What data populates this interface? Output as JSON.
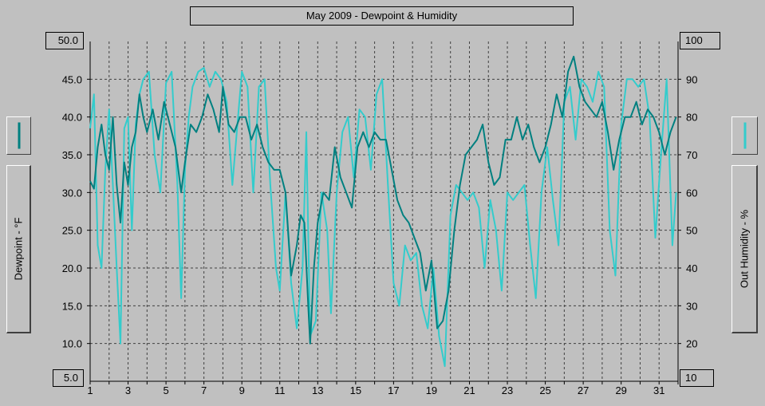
{
  "chart_data": {
    "type": "line",
    "title": "May 2009 - Dewpoint & Humidity",
    "xlabel": "",
    "ylabel": "Dewpoint - °F",
    "y2label": "Out Humidity - %",
    "ylim": [
      5.0,
      50.0
    ],
    "y2lim": [
      10,
      100
    ],
    "xlim": [
      1,
      32
    ],
    "y_ticks": [
      "50.0",
      "45.0",
      "40.0",
      "35.0",
      "30.0",
      "25.0",
      "20.0",
      "15.0",
      "10.0",
      "5.0"
    ],
    "y2_ticks": [
      "100",
      "90",
      "80",
      "70",
      "60",
      "50",
      "40",
      "30",
      "20",
      "10"
    ],
    "x_ticks": [
      "1",
      "3",
      "5",
      "7",
      "9",
      "11",
      "13",
      "15",
      "17",
      "19",
      "21",
      "23",
      "25",
      "27",
      "29",
      "31"
    ],
    "series": [
      {
        "name": "Dewpoint",
        "axis": "left",
        "color": "#008080",
        "points": [
          [
            1.0,
            31.5
          ],
          [
            1.2,
            30.5
          ],
          [
            1.4,
            36.0
          ],
          [
            1.6,
            39.0
          ],
          [
            1.8,
            35.0
          ],
          [
            2.0,
            33.0
          ],
          [
            2.2,
            40.0
          ],
          [
            2.4,
            31.0
          ],
          [
            2.6,
            26.0
          ],
          [
            2.8,
            34.0
          ],
          [
            3.0,
            31.0
          ],
          [
            3.2,
            36.0
          ],
          [
            3.4,
            38.0
          ],
          [
            3.6,
            43.0
          ],
          [
            3.8,
            40.0
          ],
          [
            4.0,
            38.0
          ],
          [
            4.3,
            41.0
          ],
          [
            4.6,
            37.0
          ],
          [
            4.9,
            42.0
          ],
          [
            5.2,
            39.0
          ],
          [
            5.5,
            36.0
          ],
          [
            5.8,
            30.0
          ],
          [
            6.0,
            34.0
          ],
          [
            6.3,
            39.0
          ],
          [
            6.6,
            38.0
          ],
          [
            6.9,
            40.0
          ],
          [
            7.2,
            43.0
          ],
          [
            7.5,
            41.0
          ],
          [
            7.8,
            38.0
          ],
          [
            8.0,
            44.0
          ],
          [
            8.3,
            39.0
          ],
          [
            8.6,
            38.0
          ],
          [
            8.9,
            40.0
          ],
          [
            9.2,
            40.0
          ],
          [
            9.5,
            37.0
          ],
          [
            9.8,
            39.0
          ],
          [
            10.1,
            36.0
          ],
          [
            10.4,
            34.0
          ],
          [
            10.7,
            33.0
          ],
          [
            11.0,
            33.0
          ],
          [
            11.3,
            30.0
          ],
          [
            11.6,
            19.0
          ],
          [
            11.9,
            23.0
          ],
          [
            12.1,
            27.0
          ],
          [
            12.3,
            26.0
          ],
          [
            12.5,
            15.0
          ],
          [
            12.6,
            10.0
          ],
          [
            12.8,
            20.0
          ],
          [
            13.0,
            26.0
          ],
          [
            13.3,
            30.0
          ],
          [
            13.6,
            29.0
          ],
          [
            13.9,
            36.0
          ],
          [
            14.2,
            32.0
          ],
          [
            14.5,
            30.0
          ],
          [
            14.8,
            28.0
          ],
          [
            15.1,
            36.0
          ],
          [
            15.4,
            38.0
          ],
          [
            15.7,
            36.0
          ],
          [
            16.0,
            38.0
          ],
          [
            16.3,
            37.0
          ],
          [
            16.6,
            37.0
          ],
          [
            16.9,
            33.0
          ],
          [
            17.2,
            29.0
          ],
          [
            17.5,
            27.0
          ],
          [
            17.8,
            26.0
          ],
          [
            18.1,
            24.0
          ],
          [
            18.4,
            22.0
          ],
          [
            18.7,
            17.0
          ],
          [
            19.0,
            21.0
          ],
          [
            19.3,
            12.0
          ],
          [
            19.6,
            13.0
          ],
          [
            19.9,
            17.0
          ],
          [
            20.2,
            25.0
          ],
          [
            20.5,
            31.0
          ],
          [
            20.8,
            35.0
          ],
          [
            21.1,
            36.0
          ],
          [
            21.4,
            37.0
          ],
          [
            21.7,
            39.0
          ],
          [
            22.0,
            34.0
          ],
          [
            22.3,
            31.0
          ],
          [
            22.6,
            32.0
          ],
          [
            22.9,
            37.0
          ],
          [
            23.2,
            37.0
          ],
          [
            23.5,
            40.0
          ],
          [
            23.8,
            37.0
          ],
          [
            24.1,
            39.0
          ],
          [
            24.4,
            36.0
          ],
          [
            24.7,
            34.0
          ],
          [
            25.0,
            36.0
          ],
          [
            25.3,
            39.0
          ],
          [
            25.6,
            43.0
          ],
          [
            25.9,
            40.0
          ],
          [
            26.2,
            46.0
          ],
          [
            26.5,
            48.0
          ],
          [
            26.8,
            44.0
          ],
          [
            27.1,
            42.0
          ],
          [
            27.4,
            41.0
          ],
          [
            27.7,
            40.0
          ],
          [
            28.0,
            42.0
          ],
          [
            28.3,
            38.0
          ],
          [
            28.6,
            33.0
          ],
          [
            28.9,
            37.0
          ],
          [
            29.2,
            40.0
          ],
          [
            29.5,
            40.0
          ],
          [
            29.8,
            42.0
          ],
          [
            30.1,
            39.0
          ],
          [
            30.4,
            41.0
          ],
          [
            30.7,
            40.0
          ],
          [
            31.0,
            38.0
          ],
          [
            31.3,
            35.0
          ],
          [
            31.6,
            38.0
          ],
          [
            31.9,
            40.0
          ]
        ]
      },
      {
        "name": "Out Humidity",
        "axis": "right",
        "color": "#33cccc",
        "points": [
          [
            1.0,
            77.0
          ],
          [
            1.2,
            86.0
          ],
          [
            1.4,
            46.0
          ],
          [
            1.6,
            40.0
          ],
          [
            1.8,
            66.0
          ],
          [
            2.0,
            82.0
          ],
          [
            2.2,
            62.0
          ],
          [
            2.4,
            40.0
          ],
          [
            2.6,
            20.0
          ],
          [
            2.8,
            77.0
          ],
          [
            3.0,
            80.0
          ],
          [
            3.2,
            50.0
          ],
          [
            3.4,
            78.0
          ],
          [
            3.6,
            86.0
          ],
          [
            3.8,
            90.0
          ],
          [
            4.1,
            92.0
          ],
          [
            4.4,
            70.0
          ],
          [
            4.7,
            60.0
          ],
          [
            5.0,
            89.0
          ],
          [
            5.3,
            92.0
          ],
          [
            5.6,
            62.0
          ],
          [
            5.8,
            32.0
          ],
          [
            6.0,
            66.0
          ],
          [
            6.2,
            80.0
          ],
          [
            6.4,
            88.0
          ],
          [
            6.7,
            92.0
          ],
          [
            7.0,
            93.0
          ],
          [
            7.3,
            88.0
          ],
          [
            7.6,
            92.0
          ],
          [
            7.9,
            90.0
          ],
          [
            8.2,
            84.0
          ],
          [
            8.5,
            62.0
          ],
          [
            8.8,
            80.0
          ],
          [
            9.0,
            92.0
          ],
          [
            9.3,
            88.0
          ],
          [
            9.6,
            60.0
          ],
          [
            9.9,
            88.0
          ],
          [
            10.2,
            90.0
          ],
          [
            10.5,
            62.0
          ],
          [
            10.8,
            40.0
          ],
          [
            11.0,
            34.0
          ],
          [
            11.3,
            60.0
          ],
          [
            11.6,
            36.0
          ],
          [
            11.9,
            24.0
          ],
          [
            12.2,
            40.0
          ],
          [
            12.4,
            76.0
          ],
          [
            12.6,
            22.0
          ],
          [
            12.9,
            26.0
          ],
          [
            13.2,
            60.0
          ],
          [
            13.5,
            50.0
          ],
          [
            13.7,
            28.0
          ],
          [
            14.0,
            60.0
          ],
          [
            14.3,
            76.0
          ],
          [
            14.6,
            80.0
          ],
          [
            14.9,
            64.0
          ],
          [
            15.2,
            82.0
          ],
          [
            15.5,
            80.0
          ],
          [
            15.8,
            66.0
          ],
          [
            16.1,
            86.0
          ],
          [
            16.4,
            90.0
          ],
          [
            16.7,
            62.0
          ],
          [
            17.0,
            36.0
          ],
          [
            17.3,
            30.0
          ],
          [
            17.6,
            46.0
          ],
          [
            17.9,
            42.0
          ],
          [
            18.2,
            44.0
          ],
          [
            18.5,
            30.0
          ],
          [
            18.8,
            24.0
          ],
          [
            19.1,
            40.0
          ],
          [
            19.4,
            22.0
          ],
          [
            19.7,
            14.0
          ],
          [
            20.0,
            54.0
          ],
          [
            20.3,
            62.0
          ],
          [
            20.6,
            60.0
          ],
          [
            20.9,
            58.0
          ],
          [
            21.2,
            60.0
          ],
          [
            21.5,
            56.0
          ],
          [
            21.8,
            40.0
          ],
          [
            22.1,
            58.0
          ],
          [
            22.4,
            50.0
          ],
          [
            22.7,
            34.0
          ],
          [
            23.0,
            60.0
          ],
          [
            23.3,
            58.0
          ],
          [
            23.6,
            60.0
          ],
          [
            23.9,
            62.0
          ],
          [
            24.2,
            46.0
          ],
          [
            24.5,
            32.0
          ],
          [
            24.8,
            60.0
          ],
          [
            25.1,
            72.0
          ],
          [
            25.4,
            58.0
          ],
          [
            25.7,
            46.0
          ],
          [
            26.0,
            84.0
          ],
          [
            26.3,
            88.0
          ],
          [
            26.6,
            74.0
          ],
          [
            26.9,
            90.0
          ],
          [
            27.2,
            88.0
          ],
          [
            27.5,
            84.0
          ],
          [
            27.8,
            92.0
          ],
          [
            28.1,
            88.0
          ],
          [
            28.4,
            50.0
          ],
          [
            28.7,
            38.0
          ],
          [
            29.0,
            78.0
          ],
          [
            29.3,
            90.0
          ],
          [
            29.6,
            90.0
          ],
          [
            29.9,
            88.0
          ],
          [
            30.2,
            90.0
          ],
          [
            30.5,
            80.0
          ],
          [
            30.8,
            48.0
          ],
          [
            31.1,
            70.0
          ],
          [
            31.4,
            90.0
          ],
          [
            31.7,
            46.0
          ],
          [
            31.9,
            60.0
          ]
        ]
      }
    ]
  },
  "legend": {
    "left_label": "Dewpoint - °F",
    "right_label": "Out Humidity - %"
  }
}
